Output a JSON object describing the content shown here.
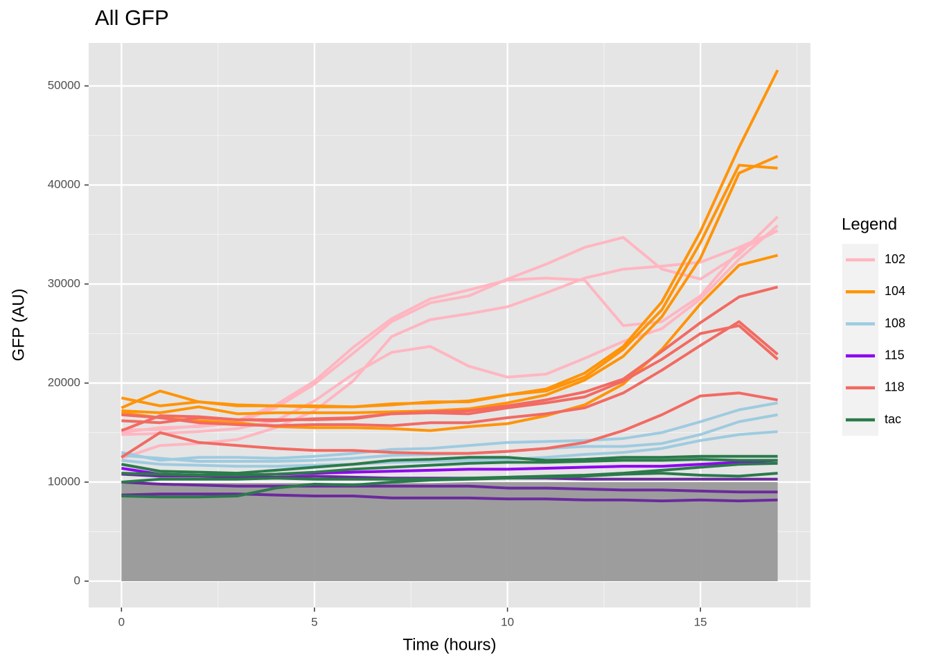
{
  "chart_data": {
    "type": "line",
    "title": "All GFP",
    "x_label": "Time (hours)",
    "y_label": "GFP (AU)",
    "legend_title": "Legend",
    "x": [
      0,
      1,
      2,
      3,
      4,
      5,
      6,
      7,
      8,
      9,
      10,
      11,
      12,
      13,
      14,
      15,
      16,
      17
    ],
    "xlim": [
      -0.85,
      17.85
    ],
    "xticks": [
      0,
      5,
      10,
      15
    ],
    "ylim": [
      -2660,
      54340
    ],
    "yticks": [
      0,
      10000,
      20000,
      30000,
      40000,
      50000
    ],
    "grid": true,
    "legend_position": "right",
    "band": {
      "color": "#999999",
      "values": [
        10100,
        9900,
        9900,
        9900,
        9900,
        9900,
        9900,
        9900,
        9900,
        10000,
        10000,
        10000,
        10000,
        10000,
        10000,
        10000,
        10000,
        10000
      ]
    },
    "series": [
      {
        "name": "102",
        "color": "#FFB6C1",
        "values": [
          14800,
          14900,
          15100,
          15400,
          16200,
          18200,
          20900,
          23100,
          23700,
          21700,
          20600,
          20900,
          22500,
          24200,
          25500,
          28500,
          32500,
          35900
        ]
      },
      {
        "name": "102",
        "color": "#FFB6C1",
        "values": [
          15300,
          15300,
          15700,
          16200,
          17800,
          20200,
          23600,
          26500,
          28500,
          29400,
          30400,
          30600,
          30400,
          25800,
          26200,
          28800,
          33400,
          35400
        ]
      },
      {
        "name": "102",
        "color": "#FFB6C1",
        "values": [
          15000,
          15500,
          15600,
          16000,
          17500,
          19900,
          23000,
          26200,
          28100,
          28800,
          30500,
          32000,
          33700,
          34700,
          31500,
          30500,
          33000,
          36800
        ]
      },
      {
        "name": "102",
        "color": "#FFB6C1",
        "values": [
          12400,
          13700,
          13900,
          14300,
          15500,
          17200,
          20200,
          24700,
          26400,
          27000,
          27700,
          29100,
          30600,
          31500,
          31800,
          32200,
          33700,
          35400
        ]
      },
      {
        "name": "104",
        "color": "#FF9408",
        "values": [
          18500,
          17700,
          18100,
          17700,
          17700,
          17600,
          17600,
          17900,
          18000,
          18200,
          18800,
          19400,
          21000,
          23700,
          28200,
          35300,
          43800,
          51600
        ]
      },
      {
        "name": "104",
        "color": "#FF9408",
        "values": [
          17500,
          19200,
          18100,
          17800,
          17700,
          17700,
          17600,
          17800,
          18100,
          18100,
          18800,
          19200,
          20600,
          23400,
          27400,
          34200,
          42000,
          41700
        ]
      },
      {
        "name": "104",
        "color": "#FF9408",
        "values": [
          17200,
          17000,
          17600,
          16900,
          17000,
          17000,
          17000,
          17100,
          17200,
          17400,
          18000,
          18800,
          20300,
          22700,
          26700,
          32600,
          41200,
          42900
        ]
      },
      {
        "name": "104",
        "color": "#FF9408",
        "values": [
          17000,
          16500,
          16200,
          16000,
          15600,
          15500,
          15500,
          15400,
          15200,
          15600,
          15900,
          16700,
          17800,
          19900,
          23400,
          28000,
          31900,
          32900
        ]
      },
      {
        "name": "108",
        "color": "#9ECBE0",
        "values": [
          13000,
          12200,
          12500,
          12500,
          12400,
          12600,
          12900,
          13300,
          13400,
          13700,
          14000,
          14100,
          14200,
          14400,
          15000,
          16100,
          17300,
          18000
        ]
      },
      {
        "name": "108",
        "color": "#9ECBE0",
        "values": [
          12700,
          12400,
          12100,
          12100,
          12100,
          12200,
          12400,
          12700,
          12800,
          12900,
          13100,
          13400,
          13600,
          13600,
          13900,
          14800,
          16100,
          16800
        ]
      },
      {
        "name": "108",
        "color": "#9ECBE0",
        "values": [
          12200,
          11800,
          11700,
          11600,
          11600,
          11700,
          11800,
          12000,
          12100,
          12200,
          12300,
          12500,
          12800,
          13000,
          13400,
          14200,
          14800,
          15100
        ]
      },
      {
        "name": "115",
        "color": "#8F00F0",
        "values": [
          11400,
          10800,
          10700,
          10700,
          10800,
          10900,
          11000,
          11100,
          11200,
          11300,
          11300,
          11400,
          11500,
          11600,
          11600,
          11800,
          12000,
          12200
        ]
      },
      {
        "name": "115",
        "color": "#6B2A9C",
        "values": [
          10800,
          10600,
          10600,
          10500,
          10500,
          10600,
          10500,
          10400,
          10400,
          10400,
          10400,
          10400,
          10300,
          10300,
          10300,
          10300,
          10300,
          10300
        ]
      },
      {
        "name": "115",
        "color": "#6B2A9C",
        "values": [
          10000,
          9800,
          9700,
          9600,
          9600,
          9600,
          9600,
          9600,
          9600,
          9600,
          9400,
          9400,
          9300,
          9200,
          9200,
          9100,
          9000,
          9000
        ]
      },
      {
        "name": "115",
        "color": "#6B2A9C",
        "values": [
          8700,
          8800,
          8800,
          8800,
          8700,
          8600,
          8600,
          8400,
          8400,
          8400,
          8300,
          8300,
          8200,
          8200,
          8100,
          8200,
          8100,
          8200
        ]
      },
      {
        "name": "118",
        "color": "#F26A62",
        "values": [
          15200,
          16700,
          16600,
          16300,
          16300,
          16300,
          16400,
          16900,
          17100,
          17200,
          17700,
          18300,
          19100,
          20400,
          23200,
          26100,
          28700,
          29700
        ]
      },
      {
        "name": "118",
        "color": "#F26A62",
        "values": [
          16200,
          16000,
          16500,
          16300,
          16200,
          16400,
          16500,
          16900,
          17000,
          16900,
          17500,
          18000,
          18600,
          20200,
          22400,
          25000,
          25800,
          22400
        ]
      },
      {
        "name": "118",
        "color": "#F26A62",
        "values": [
          16800,
          16500,
          16000,
          15800,
          15700,
          15800,
          15800,
          15700,
          16000,
          16000,
          16500,
          16900,
          17500,
          19000,
          21300,
          23800,
          26200,
          22900
        ]
      },
      {
        "name": "118",
        "color": "#F26A62",
        "values": [
          12500,
          15000,
          14000,
          13700,
          13400,
          13200,
          13200,
          13000,
          12900,
          12900,
          13100,
          13400,
          14000,
          15200,
          16800,
          18700,
          19000,
          18300
        ]
      },
      {
        "name": "tac",
        "color": "#2B7A4B",
        "values": [
          11800,
          11100,
          11000,
          10900,
          11200,
          11500,
          11800,
          12200,
          12300,
          12500,
          12500,
          12200,
          12300,
          12500,
          12500,
          12600,
          12600,
          12600
        ]
      },
      {
        "name": "tac",
        "color": "#2B7A4B",
        "values": [
          10900,
          10800,
          10700,
          10700,
          10800,
          11000,
          11300,
          11500,
          11700,
          11900,
          12000,
          12000,
          12100,
          12200,
          12200,
          12300,
          12200,
          12200
        ]
      },
      {
        "name": "tac",
        "color": "#2B7A4B",
        "values": [
          10000,
          10300,
          10300,
          10300,
          10400,
          10300,
          10300,
          10300,
          10300,
          10400,
          10500,
          10600,
          10700,
          10900,
          11200,
          11500,
          11800,
          11900
        ]
      },
      {
        "name": "tac",
        "color": "#2B7A4B",
        "values": [
          8600,
          8500,
          8500,
          8600,
          9400,
          9800,
          9700,
          10000,
          10200,
          10300,
          10400,
          10500,
          10600,
          10800,
          10900,
          10700,
          10600,
          10900
        ]
      }
    ]
  }
}
